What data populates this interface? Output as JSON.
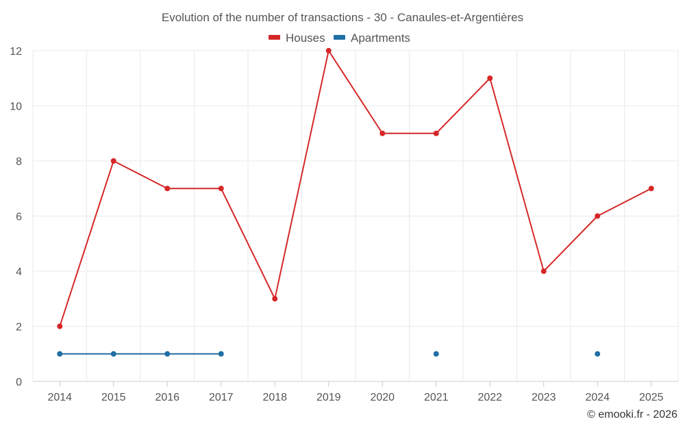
{
  "chart_data": {
    "type": "line",
    "title": "Evolution of the number of transactions - 30 - Canaules-et-Argentières",
    "categories": [
      "2014",
      "2015",
      "2016",
      "2017",
      "2018",
      "2019",
      "2020",
      "2021",
      "2022",
      "2023",
      "2024",
      "2025"
    ],
    "series": [
      {
        "name": "Houses",
        "color": "#d62728",
        "values": [
          2,
          8,
          7,
          7,
          3,
          12,
          9,
          9,
          11,
          4,
          6,
          7
        ]
      },
      {
        "name": "Apartments",
        "color": "#1f6fa5",
        "values": [
          1,
          1,
          1,
          1,
          null,
          null,
          null,
          1,
          null,
          null,
          1,
          null
        ]
      }
    ],
    "ylim": [
      0,
      12
    ],
    "yticks": [
      0,
      2,
      4,
      6,
      8,
      10,
      12
    ],
    "xlabel": "",
    "ylabel": "",
    "grid": true,
    "legend_position": "top-center"
  },
  "credit": "© emooki.fr - 2026"
}
